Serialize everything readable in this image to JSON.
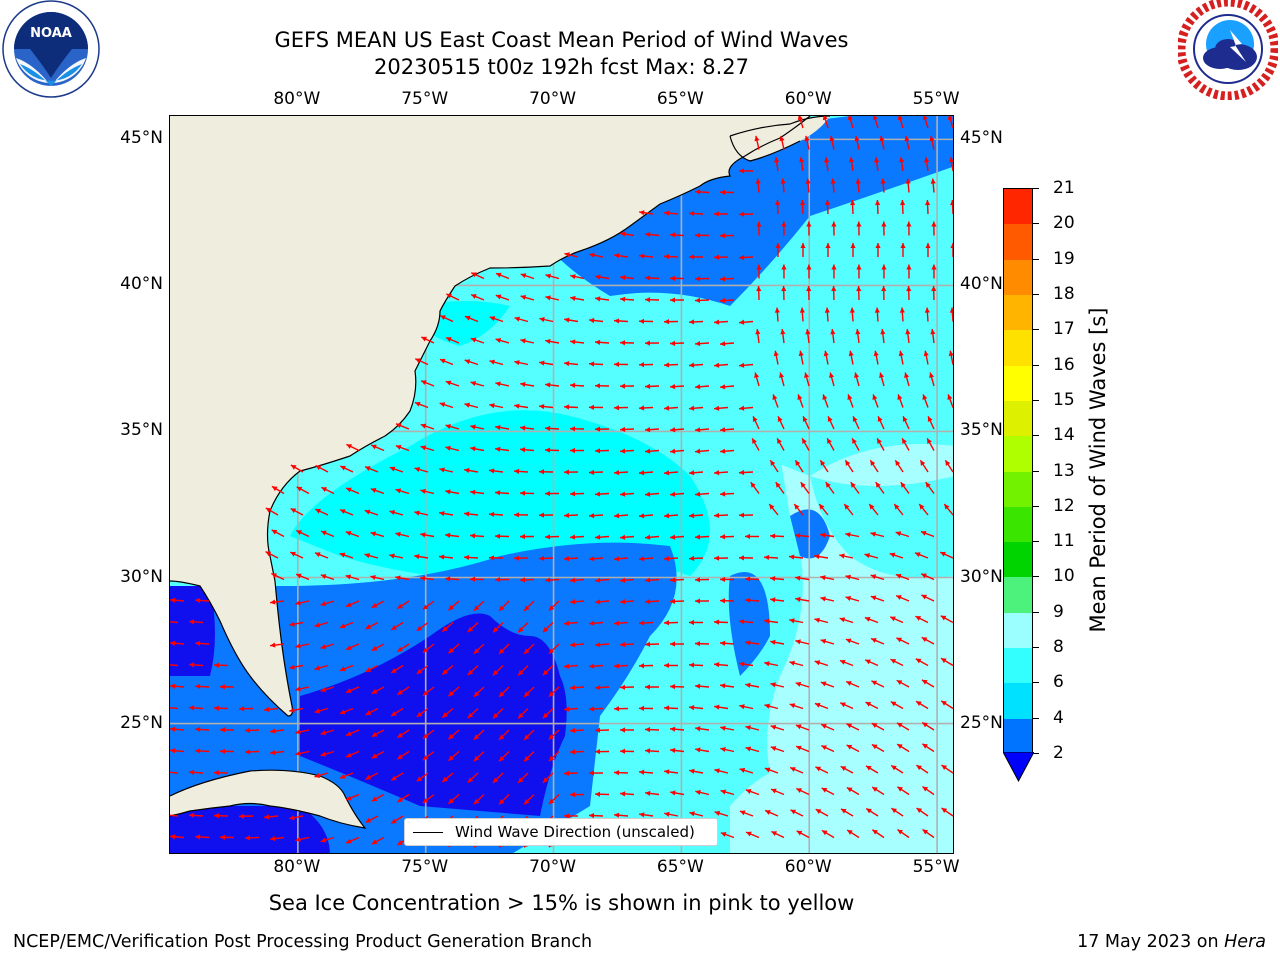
{
  "title": {
    "line1": "GEFS MEAN US East Coast Mean Period of Wind Waves",
    "line2": "20230515 t00z 192h fcst   Max: 8.27"
  },
  "logos": {
    "left": {
      "icon": "noaa-logo",
      "text": "NOAA",
      "ring_text": "NATIONAL OCEANIC AND ATMOSPHERIC ADMINISTRATION · U.S. DEPARTMENT OF COMMERCE"
    },
    "right": {
      "icon": "nws-logo",
      "ring_text": "NATIONAL WEATHER SERVICE"
    }
  },
  "axes": {
    "x_ticks": [
      "80°W",
      "75°W",
      "70°W",
      "65°W",
      "60°W",
      "55°W"
    ],
    "y_ticks": [
      "45°N",
      "40°N",
      "35°N",
      "30°N",
      "25°N"
    ],
    "lon_range": [
      -85,
      -54.3
    ],
    "lat_range": [
      20.5,
      45.8
    ],
    "grid": true
  },
  "legend": {
    "label": "Wind Wave Direction (unscaled)"
  },
  "colorbar": {
    "label": "Mean Period of Wind Waves [s]",
    "ticks": [
      "2",
      "4",
      "6",
      "8",
      "9",
      "10",
      "11",
      "12",
      "13",
      "14",
      "15",
      "16",
      "17",
      "18",
      "19",
      "20",
      "21"
    ],
    "colors": [
      "#0073ff",
      "#00e1ff",
      "#33ffff",
      "#9cffff",
      "#4cf27c",
      "#00d400",
      "#3ae600",
      "#73f200",
      "#b0ff00",
      "#dcf000",
      "#ffff00",
      "#ffe100",
      "#ffb400",
      "#ff8c00",
      "#ff5a00",
      "#ff2600",
      "#ff0000"
    ],
    "under_color": "#0000ff"
  },
  "map_colors": {
    "land": "#efedde",
    "under2": "#1010ef",
    "p2_4": "#0a78ff",
    "p4_6": "#00ffff",
    "p6_8": "#55ffff",
    "p8_9": "#a8ffff",
    "arrow": "#ff0000",
    "grid": "#b0b0b0"
  },
  "note": "Sea Ice Concentration > 15% is shown in pink to yellow",
  "footer": {
    "left": "NCEP/EMC/Verification Post Processing Product Generation Branch",
    "date": "17 May 2023 on ",
    "host": "Hera"
  }
}
